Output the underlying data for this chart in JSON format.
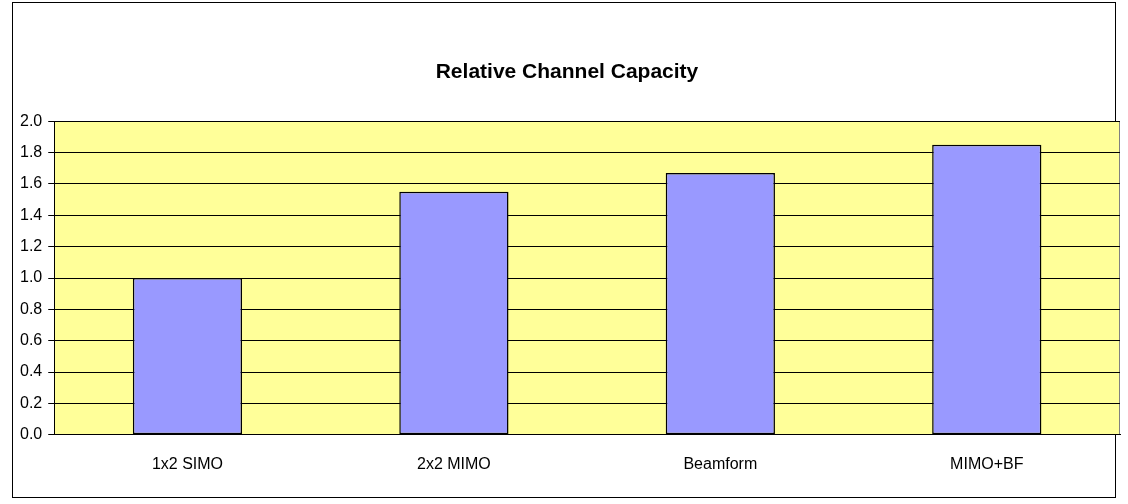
{
  "chart_data": {
    "type": "bar",
    "title": "Relative Channel Capacity",
    "categories": [
      "1x2 SIMO",
      "2x2 MIMO",
      "Beamform",
      "MIMO+BF"
    ],
    "values": [
      1.0,
      1.55,
      1.67,
      1.85
    ],
    "color": "#9999ff",
    "ylim": [
      0,
      2
    ],
    "yticks": [
      {
        "value": 0,
        "label": "0.0"
      },
      {
        "value": 0.2,
        "label": "0.2"
      },
      {
        "value": 0.4,
        "label": "0.4"
      },
      {
        "value": 0.6,
        "label": "0.6"
      },
      {
        "value": 0.8,
        "label": "0.8"
      },
      {
        "value": 1,
        "label": "1.0"
      },
      {
        "value": 1.2,
        "label": "1.2"
      },
      {
        "value": 1.4,
        "label": "1.4"
      },
      {
        "value": 1.6,
        "label": "1.6"
      },
      {
        "value": 1.8,
        "label": "1.8"
      },
      {
        "value": 2,
        "label": "2.0"
      }
    ],
    "grid": "y",
    "legend": false
  }
}
